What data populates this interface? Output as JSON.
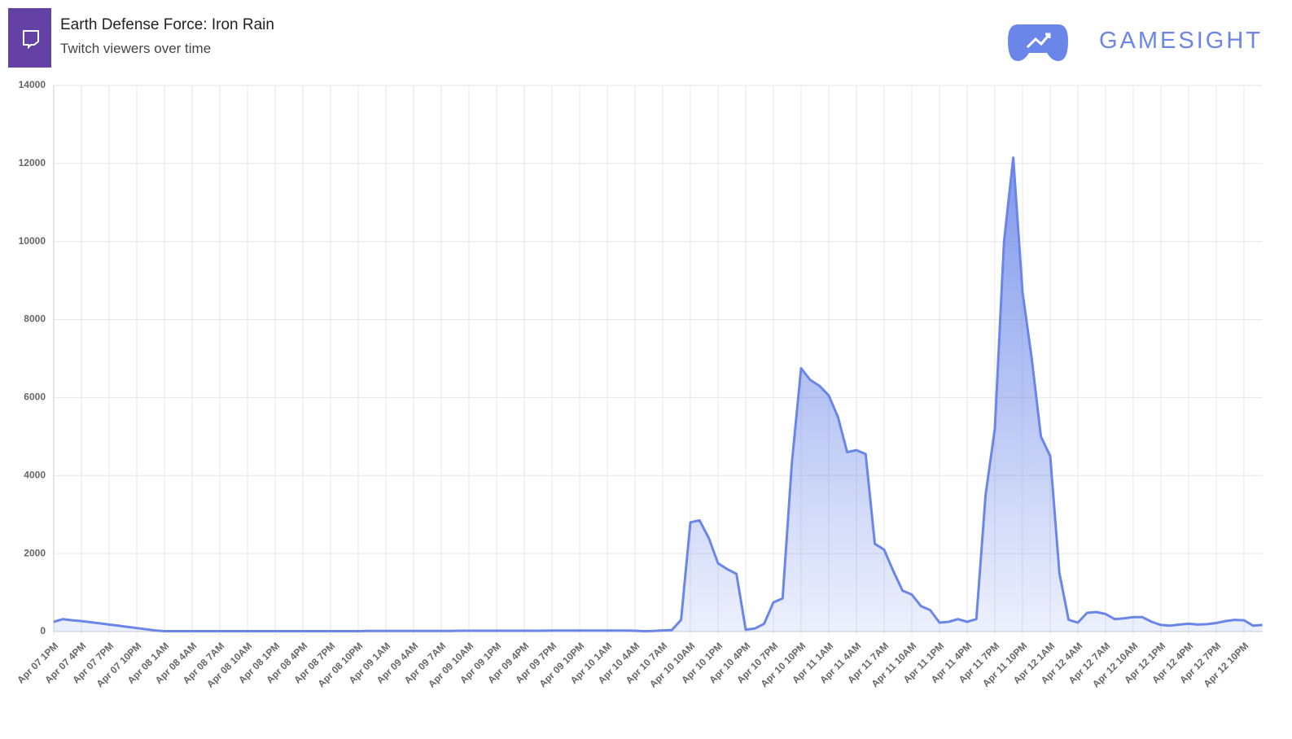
{
  "brand": "GAMESIGHT",
  "chart_data": {
    "type": "area",
    "title": "Earth Defense Force: Iron Rain",
    "subtitle": "Twitch viewers over time",
    "color": "#6a86e8",
    "grid": true,
    "ylim": [
      0,
      14000
    ],
    "yticks": [
      0,
      2000,
      4000,
      6000,
      8000,
      10000,
      12000,
      14000
    ],
    "categories": [
      "Apr 07 1PM",
      null,
      null,
      "Apr 07 4PM",
      null,
      null,
      "Apr 07 7PM",
      null,
      null,
      "Apr 07 10PM",
      null,
      null,
      "Apr 08 1AM",
      null,
      null,
      "Apr 08 4AM",
      null,
      null,
      "Apr 08 7AM",
      null,
      null,
      "Apr 08 10AM",
      null,
      null,
      "Apr 08 1PM",
      null,
      null,
      "Apr 08 4PM",
      null,
      null,
      "Apr 08 7PM",
      null,
      null,
      "Apr 08 10PM",
      null,
      null,
      "Apr 09 1AM",
      null,
      null,
      "Apr 09 4AM",
      null,
      null,
      "Apr 09 7AM",
      null,
      null,
      "Apr 09 10AM",
      null,
      null,
      "Apr 09 1PM",
      null,
      null,
      "Apr 09 4PM",
      null,
      null,
      "Apr 09 7PM",
      null,
      null,
      "Apr 09 10PM",
      null,
      null,
      "Apr 10 1AM",
      null,
      null,
      "Apr 10 4AM",
      null,
      null,
      "Apr 10 7AM",
      null,
      null,
      "Apr 10 10AM",
      null,
      null,
      "Apr 10 1PM",
      null,
      null,
      "Apr 10 4PM",
      null,
      null,
      "Apr 10 7PM",
      null,
      null,
      "Apr 10 10PM",
      null,
      null,
      "Apr 11 1AM",
      null,
      null,
      "Apr 11 4AM",
      null,
      null,
      "Apr 11 7AM",
      null,
      null,
      "Apr 11 10AM",
      null,
      null,
      "Apr 11 1PM",
      null,
      null,
      "Apr 11 4PM",
      null,
      null,
      "Apr 11 7PM",
      null,
      null,
      "Apr 11 10PM",
      null,
      null,
      "Apr 12 1AM",
      null,
      null,
      "Apr 12 4AM",
      null,
      null,
      "Apr 12 7AM",
      null,
      null,
      "Apr 12 10AM",
      null,
      null,
      "Apr 12 1PM",
      null,
      null,
      "Apr 12 4PM",
      null,
      null,
      "Apr 12 7PM",
      null,
      null,
      "Apr 12 10PM",
      null,
      null
    ],
    "values": [
      250,
      320,
      290,
      270,
      240,
      210,
      180,
      150,
      120,
      90,
      60,
      30,
      10,
      10,
      10,
      10,
      10,
      10,
      10,
      10,
      10,
      10,
      10,
      10,
      10,
      10,
      10,
      10,
      10,
      10,
      10,
      10,
      10,
      10,
      15,
      15,
      15,
      15,
      15,
      15,
      15,
      15,
      15,
      15,
      20,
      20,
      20,
      20,
      20,
      20,
      20,
      20,
      20,
      20,
      25,
      25,
      25,
      25,
      25,
      25,
      25,
      25,
      25,
      20,
      10,
      15,
      30,
      40,
      300,
      2800,
      2850,
      2400,
      1750,
      1600,
      1480,
      50,
      80,
      200,
      750,
      850,
      4300,
      6750,
      6450,
      6300,
      6050,
      5500,
      4600,
      4650,
      4550,
      2250,
      2100,
      1550,
      1050,
      950,
      650,
      550,
      230,
      250,
      320,
      250,
      320,
      3500,
      5200,
      10000,
      12150,
      8700,
      7000,
      5000,
      4500,
      1500,
      300,
      230,
      480,
      500,
      450,
      320,
      340,
      370,
      370,
      250,
      170,
      150,
      180,
      200,
      180,
      190,
      220,
      270,
      300,
      290,
      150,
      170
    ]
  }
}
